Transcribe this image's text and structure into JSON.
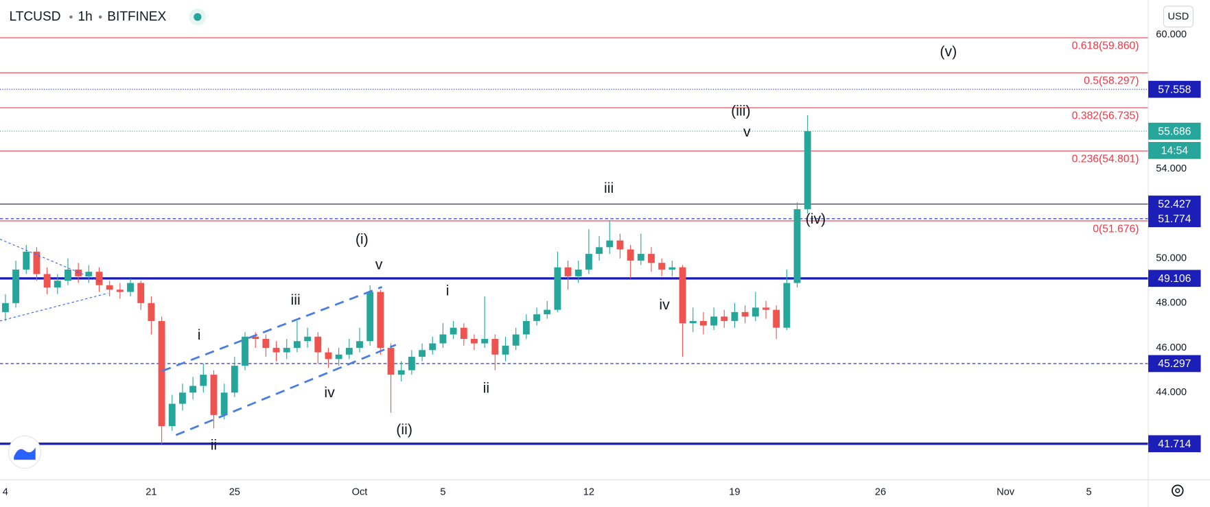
{
  "chart_data": {
    "type": "candlestick",
    "symbol": "LTCUSD",
    "interval": "1h",
    "exchange": "BITFINEX",
    "currency": "USD",
    "countdown": "14:54",
    "up_color": "#26a69a",
    "down_color": "#ef5350",
    "xlim": [
      -0.26,
      54.85
    ],
    "ylim": [
      40.1,
      61.55
    ],
    "xticks": [
      {
        "value": 0,
        "label": "4"
      },
      {
        "value": 7,
        "label": "21"
      },
      {
        "value": 11,
        "label": "25"
      },
      {
        "value": 17,
        "label": "Oct"
      },
      {
        "value": 21,
        "label": "5"
      },
      {
        "value": 28,
        "label": "12"
      },
      {
        "value": 35,
        "label": "19"
      },
      {
        "value": 42,
        "label": "26"
      },
      {
        "value": 48,
        "label": "Nov"
      },
      {
        "value": 52,
        "label": "5"
      }
    ],
    "yticks": [
      {
        "value": 44,
        "label": "44.000"
      },
      {
        "value": 46,
        "label": "46.000"
      },
      {
        "value": 48,
        "label": "48.000"
      },
      {
        "value": 50,
        "label": "50.000"
      },
      {
        "value": 54,
        "label": "54.000"
      },
      {
        "value": 60,
        "label": "60.000"
      }
    ],
    "x": [
      0,
      0.5,
      1,
      1.5,
      2,
      2.5,
      3,
      3.5,
      4,
      4.5,
      5,
      5.5,
      6,
      6.5,
      7,
      7.5,
      8,
      8.5,
      9,
      9.5,
      10,
      10.5,
      11,
      11.5,
      12,
      12.5,
      13,
      13.5,
      14,
      14.5,
      15,
      15.5,
      16,
      16.5,
      17,
      17.5,
      18,
      18.5,
      19,
      19.5,
      20,
      20.5,
      21,
      21.5,
      22,
      22.5,
      23,
      23.5,
      24,
      24.5,
      25,
      25.5,
      26,
      26.5,
      27,
      27.5,
      28,
      28.5,
      29,
      29.5,
      30,
      30.5,
      31,
      31.5,
      32,
      32.5,
      33,
      33.5,
      34,
      34.5,
      35,
      35.5,
      36,
      36.5,
      37,
      37.5,
      38,
      38.5
    ],
    "open": [
      47.6,
      48.0,
      49.5,
      50.3,
      49.3,
      48.7,
      49.0,
      49.5,
      49.2,
      49.4,
      48.8,
      48.6,
      48.5,
      48.9,
      48.0,
      47.2,
      42.5,
      43.5,
      44.0,
      44.3,
      44.8,
      43.0,
      44.0,
      45.2,
      46.5,
      46.4,
      46.0,
      45.8,
      46.0,
      46.3,
      46.5,
      45.8,
      45.5,
      45.7,
      46.0,
      46.3,
      48.5,
      46.0,
      44.8,
      45.0,
      45.6,
      45.9,
      46.2,
      46.6,
      46.9,
      46.4,
      46.2,
      46.4,
      45.7,
      46.1,
      46.6,
      47.2,
      47.5,
      47.7,
      49.6,
      49.2,
      49.5,
      50.2,
      50.5,
      50.8,
      50.4,
      49.9,
      50.2,
      49.8,
      49.5,
      49.6,
      47.1,
      47.2,
      47.0,
      47.4,
      47.2,
      47.6,
      47.4,
      47.8,
      47.7,
      46.9,
      48.9,
      52.2
    ],
    "high": [
      48.4,
      49.9,
      50.6,
      50.5,
      49.6,
      49.3,
      50.0,
      49.8,
      49.7,
      49.6,
      49.0,
      48.9,
      49.1,
      49.0,
      48.3,
      47.4,
      43.9,
      44.4,
      44.7,
      45.3,
      45.0,
      44.4,
      45.6,
      46.7,
      46.7,
      46.6,
      46.3,
      46.4,
      47.2,
      46.9,
      46.7,
      46.0,
      46.0,
      46.4,
      46.9,
      48.8,
      48.6,
      46.2,
      45.4,
      45.9,
      46.2,
      46.5,
      47.1,
      47.2,
      47.1,
      46.6,
      48.3,
      46.6,
      46.5,
      46.9,
      47.5,
      47.8,
      48.1,
      50.3,
      49.9,
      49.9,
      51.3,
      51.0,
      51.7,
      51.1,
      50.6,
      51.1,
      50.5,
      50.0,
      49.9,
      49.7,
      47.8,
      47.6,
      47.8,
      47.7,
      48.0,
      47.9,
      48.5,
      48.1,
      47.9,
      49.5,
      52.5,
      56.4
    ],
    "low": [
      47.2,
      47.8,
      49.3,
      49.0,
      48.4,
      48.4,
      48.8,
      48.9,
      48.9,
      48.5,
      48.3,
      48.2,
      48.3,
      47.7,
      46.6,
      41.7,
      42.3,
      43.2,
      43.7,
      44.0,
      42.4,
      42.8,
      43.8,
      45.0,
      46.0,
      45.6,
      45.4,
      45.5,
      45.8,
      46.0,
      45.3,
      45.1,
      45.2,
      45.5,
      45.8,
      46.1,
      45.7,
      43.1,
      44.5,
      44.8,
      45.4,
      45.7,
      46.0,
      46.4,
      46.1,
      45.9,
      46.0,
      45.0,
      45.4,
      45.9,
      46.4,
      47.0,
      47.3,
      47.6,
      48.6,
      48.9,
      49.3,
      49.9,
      50.2,
      50.0,
      49.1,
      49.7,
      49.4,
      49.2,
      49.2,
      45.6,
      46.7,
      46.6,
      46.8,
      46.9,
      46.9,
      47.1,
      47.2,
      47.3,
      46.4,
      46.8,
      48.7,
      52.0
    ],
    "close": [
      48.0,
      49.5,
      50.3,
      49.3,
      48.7,
      49.0,
      49.5,
      49.2,
      49.4,
      48.8,
      48.6,
      48.5,
      48.9,
      48.0,
      47.2,
      42.5,
      43.5,
      44.0,
      44.3,
      44.8,
      43.0,
      44.0,
      45.2,
      46.5,
      46.4,
      46.0,
      45.8,
      46.0,
      46.3,
      46.5,
      45.8,
      45.5,
      45.7,
      46.0,
      46.3,
      48.5,
      46.0,
      44.8,
      45.0,
      45.6,
      45.9,
      46.2,
      46.6,
      46.9,
      46.4,
      46.2,
      46.4,
      45.7,
      46.1,
      46.6,
      47.2,
      47.5,
      47.7,
      49.6,
      49.2,
      49.5,
      50.2,
      50.5,
      50.8,
      50.4,
      49.9,
      50.2,
      49.8,
      49.5,
      49.6,
      47.1,
      47.2,
      47.0,
      47.4,
      47.2,
      47.6,
      47.4,
      47.8,
      47.7,
      46.9,
      48.9,
      52.2,
      55.686
    ],
    "levels": [
      {
        "value": 57.558,
        "color": "#1c1fb7",
        "style": "dotted",
        "width": 1
      },
      {
        "value": 55.686,
        "color": "#26a69a",
        "style": "dotted",
        "width": 1
      },
      {
        "value": 52.427,
        "color": "#1c1fb7",
        "style": "solid",
        "width": 1
      },
      {
        "value": 51.774,
        "color": "#1c1fb7",
        "style": "dashed",
        "width": 1
      },
      {
        "value": 49.106,
        "color": "#1c1fb7",
        "style": "solid",
        "width": 3
      },
      {
        "value": 45.297,
        "color": "#1c1fb7",
        "style": "dashed",
        "width": 1
      },
      {
        "value": 41.714,
        "color": "#1c1fb7",
        "style": "solid",
        "width": 3
      }
    ],
    "fib_color": "#f23645",
    "fib_levels": [
      {
        "label": "0.618(59.860)",
        "value": 59.86
      },
      {
        "label": "0.5(58.297)",
        "value": 58.297
      },
      {
        "label": "0.382(56.735)",
        "value": 56.735
      },
      {
        "label": "0.236(54.801)",
        "value": 54.801
      },
      {
        "label": "0(51.676)",
        "value": 51.676
      }
    ],
    "annotations": [
      "(v)",
      "(iii)",
      "v",
      "iii",
      "(iv)",
      "(i)",
      "v",
      "i",
      "iv",
      "iii",
      "i",
      "iv",
      "ii",
      "(ii)",
      "ii"
    ]
  }
}
